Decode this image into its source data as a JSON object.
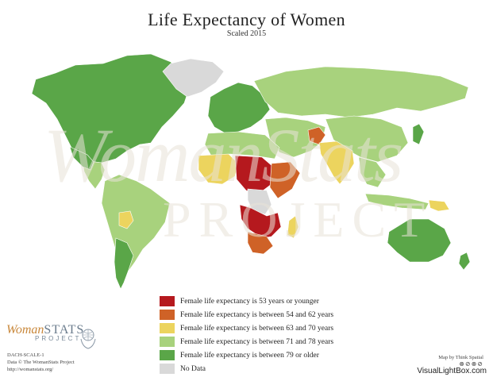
{
  "title": "Life Expectancy of Women",
  "subtitle": "Scaled 2015",
  "watermark": {
    "line1": "WomanStats",
    "line2": "PROJECT"
  },
  "legend": [
    {
      "label": "Female life expectancy is 53 years or younger",
      "color": "#b5191e"
    },
    {
      "label": "Female life expectancy is between 54 and 62 years",
      "color": "#cf6227"
    },
    {
      "label": "Female life expectancy is between 63 and 70 years",
      "color": "#ecd45e"
    },
    {
      "label": "Female life expectancy is between 71 and 78 years",
      "color": "#a8d27d"
    },
    {
      "label": "Female life expectancy is between 79 or older",
      "color": "#5aa648"
    },
    {
      "label": "No Data",
      "color": "#d9d9d9"
    }
  ],
  "brand": {
    "name_italic": "Woman",
    "name_caps": "STATS",
    "project": "PROJECT"
  },
  "credits": {
    "code": "DACH-SCALE-1",
    "data": "Data © The WomanStats Project",
    "url": "http://womanstats.org/"
  },
  "map_credit": "Map by Think Spatial",
  "map_credit_dots": "⊗⊘⊗⊘",
  "site_credit": "VisualLightBox.com"
}
